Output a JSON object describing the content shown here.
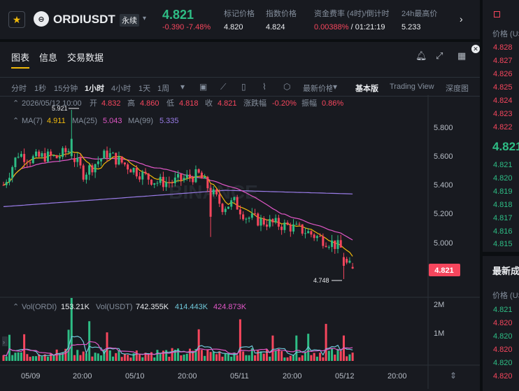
{
  "header": {
    "symbol": "ORDIUSDT",
    "perp_badge": "永续",
    "last_price": "4.821",
    "change": "-0.390 -7.48%",
    "stats": [
      {
        "label": "标记价格",
        "value": "4.820"
      },
      {
        "label": "指数价格",
        "value": "4.824"
      },
      {
        "label": "资金费率 (4时)/倒计时",
        "value_rate": "0.00388%",
        "value_countdown": "/ 01:21:19"
      },
      {
        "label": "24h最高价",
        "value": "5.233"
      }
    ]
  },
  "tabs": [
    "图表",
    "信息",
    "交易数据"
  ],
  "timeframes": [
    "分时",
    "1秒",
    "15分钟",
    "1小时",
    "4小时",
    "1天",
    "1周"
  ],
  "active_timeframe": "1小时",
  "indicator_label": "最新价格",
  "views": [
    "基本版",
    "Trading View",
    "深度图"
  ],
  "active_view": "基本版",
  "chart": {
    "ohlc_line": {
      "date": "2026/05/12 10:00",
      "open_label": "开",
      "open": "4.832",
      "high_label": "高",
      "high": "4.860",
      "low_label": "低",
      "low": "4.818",
      "close_label": "收",
      "close": "4.821",
      "chg_label": "涨跌幅",
      "chg": "-0.20%",
      "amp_label": "振幅",
      "amp": "0.86%"
    },
    "ma_line": {
      "ma7_label": "MA(7)",
      "ma7": "4.911",
      "ma25_label": "MA(25)",
      "ma25": "5.043",
      "ma99_label": "MA(99)",
      "ma99": "5.335"
    },
    "vol_line": {
      "label1": "Vol(ORDI)",
      "val1": "153.21K",
      "label2": "Vol(USDT)",
      "val2": "742.355K",
      "val3": "414.443K",
      "val4": "424.873K"
    },
    "price_axis": [
      "5.800",
      "5.600",
      "5.400",
      "5.200",
      "5.000"
    ],
    "vol_axis": [
      "2M",
      "1M"
    ],
    "time_axis": [
      "05/09",
      "20:00",
      "05/10",
      "20:00",
      "05/11",
      "20:00",
      "05/12",
      "20:00"
    ],
    "current_price_tag": "4.821",
    "max_label": "5.921",
    "min_label": "4.748",
    "watermark": "BINANCE"
  },
  "orderbook": {
    "header": "价格 (USDT)",
    "asks": [
      "4.828",
      "4.827",
      "4.826",
      "4.825",
      "4.824",
      "4.823",
      "4.822"
    ],
    "mid": "4.821",
    "bids": [
      "4.821",
      "4.820",
      "4.819",
      "4.818",
      "4.817",
      "4.816",
      "4.815"
    ]
  },
  "trades": {
    "title": "最新成交",
    "header": "价格 (USDT)",
    "prices": [
      {
        "p": "4.821",
        "side": "bid"
      },
      {
        "p": "4.820",
        "side": "ask"
      },
      {
        "p": "4.820",
        "side": "bid"
      },
      {
        "p": "4.820",
        "side": "ask"
      },
      {
        "p": "4.820",
        "side": "bid"
      },
      {
        "p": "4.820",
        "side": "ask"
      }
    ]
  },
  "colors": {
    "up": "#2ebd85",
    "down": "#f6465d",
    "ma7": "#f0b90b",
    "ma25": "#e057c6",
    "ma99": "#9a7ce8",
    "accent": "#f0b90b"
  }
}
